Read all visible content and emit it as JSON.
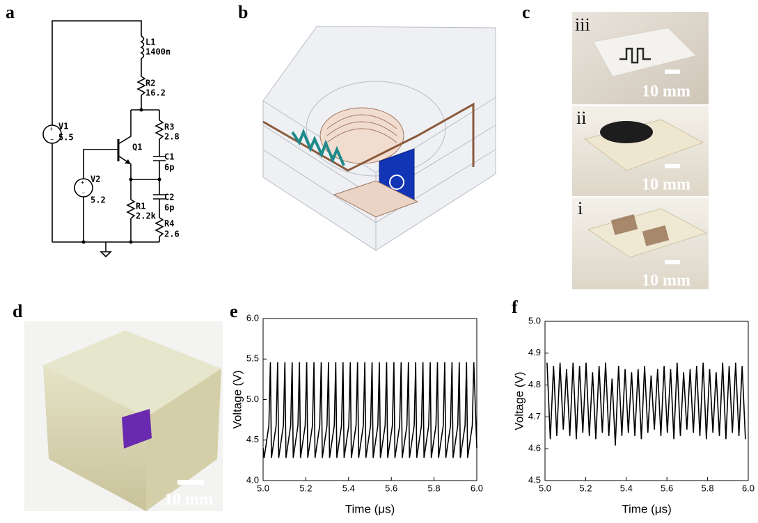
{
  "panels": {
    "a": {
      "label": "a",
      "components": [
        {
          "name": "V1",
          "value": "5.5"
        },
        {
          "name": "L1",
          "value": "1400n"
        },
        {
          "name": "R2",
          "value": "16.2"
        },
        {
          "name": "R3",
          "value": "2.8"
        },
        {
          "name": "C1",
          "value": "6p"
        },
        {
          "name": "C2",
          "value": "6p"
        },
        {
          "name": "R4",
          "value": "2.6"
        },
        {
          "name": "R1",
          "value": "2.2k"
        },
        {
          "name": "V2",
          "value": "5.2"
        },
        {
          "name": "Q1"
        }
      ]
    },
    "b": {
      "label": "b"
    },
    "c": {
      "label": "c",
      "photos": [
        {
          "label": "iii",
          "scale": "10 mm"
        },
        {
          "label": "ii",
          "scale": "10 mm"
        },
        {
          "label": "i",
          "scale": "10 mm"
        }
      ]
    },
    "d": {
      "label": "d",
      "scale": "10 mm"
    }
  },
  "chart_data": [
    {
      "type": "line",
      "panel_label": "e",
      "x_label": "Time (μs)",
      "y_label": "Voltage (V)",
      "xlim": [
        5.0,
        6.0
      ],
      "ylim": [
        4.0,
        6.0
      ],
      "xticks": [
        {
          "value": 5.0,
          "label": "5.0"
        },
        5.2,
        5.4,
        5.6,
        5.8,
        {
          "value": 6.0,
          "label": "6.0"
        }
      ],
      "yticks": [
        {
          "value": 4.0,
          "label": "4.0"
        },
        4.5,
        {
          "value": 5.0,
          "label": "5.0"
        },
        5.5,
        {
          "value": 6.0,
          "label": "6.0"
        }
      ],
      "x": [
        5.0,
        5.005,
        5.027,
        5.034,
        5.039,
        5.061,
        5.068,
        5.073,
        5.095,
        5.102,
        5.107,
        5.129,
        5.136,
        5.141,
        5.163,
        5.17,
        5.175,
        5.197,
        5.204,
        5.209,
        5.231,
        5.238,
        5.243,
        5.265,
        5.272,
        5.277,
        5.299,
        5.306,
        5.311,
        5.333,
        5.34,
        5.345,
        5.367,
        5.374,
        5.379,
        5.401,
        5.408,
        5.413,
        5.435,
        5.442,
        5.447,
        5.469,
        5.476,
        5.481,
        5.503,
        5.51,
        5.515,
        5.537,
        5.544,
        5.549,
        5.571,
        5.578,
        5.583,
        5.605,
        5.612,
        5.617,
        5.639,
        5.646,
        5.651,
        5.673,
        5.68,
        5.685,
        5.707,
        5.714,
        5.719,
        5.741,
        5.748,
        5.753,
        5.775,
        5.782,
        5.787,
        5.809,
        5.816,
        5.821,
        5.843,
        5.85,
        5.855,
        5.877,
        5.884,
        5.889,
        5.911,
        5.918,
        5.923,
        5.945,
        5.952,
        5.957,
        5.979,
        5.986,
        6.0
      ],
      "series": [
        {
          "color": "#000000",
          "values": [
            4.4,
            4.28,
            4.68,
            5.46,
            4.28,
            4.68,
            5.46,
            4.28,
            4.68,
            5.46,
            4.28,
            4.68,
            5.46,
            4.28,
            4.68,
            5.46,
            4.28,
            4.68,
            5.46,
            4.28,
            4.68,
            5.46,
            4.28,
            4.68,
            5.46,
            4.28,
            4.68,
            5.46,
            4.28,
            4.68,
            5.46,
            4.28,
            4.68,
            5.46,
            4.28,
            4.68,
            5.46,
            4.28,
            4.68,
            5.46,
            4.28,
            4.68,
            5.46,
            4.28,
            4.68,
            5.46,
            4.28,
            4.68,
            5.46,
            4.28,
            4.68,
            5.46,
            4.28,
            4.68,
            5.46,
            4.28,
            4.68,
            5.46,
            4.28,
            4.68,
            5.46,
            4.28,
            4.68,
            5.46,
            4.28,
            4.68,
            5.46,
            4.28,
            4.68,
            5.46,
            4.28,
            4.68,
            5.46,
            4.28,
            4.68,
            5.46,
            4.28,
            4.68,
            5.46,
            4.28,
            4.68,
            5.46,
            4.28,
            4.68,
            5.46,
            4.28,
            4.68,
            5.46,
            4.4
          ]
        }
      ]
    },
    {
      "type": "line",
      "panel_label": "f",
      "x_label": "Time (μs)",
      "y_label": "Voltage (V)",
      "xlim": [
        5.0,
        6.0
      ],
      "ylim": [
        4.5,
        5.0
      ],
      "xticks": [
        {
          "value": 5.0,
          "label": "5.0"
        },
        5.2,
        5.4,
        5.6,
        5.8,
        {
          "value": 6.0,
          "label": "6.0"
        }
      ],
      "yticks": [
        4.5,
        4.6,
        4.7,
        4.8,
        4.9,
        {
          "value": 5.0,
          "label": "5.0"
        }
      ],
      "x": [
        5.01,
        5.026,
        5.042,
        5.058,
        5.074,
        5.09,
        5.106,
        5.122,
        5.138,
        5.154,
        5.17,
        5.186,
        5.202,
        5.218,
        5.234,
        5.25,
        5.266,
        5.282,
        5.298,
        5.314,
        5.33,
        5.346,
        5.362,
        5.378,
        5.394,
        5.41,
        5.426,
        5.442,
        5.458,
        5.474,
        5.49,
        5.506,
        5.522,
        5.538,
        5.554,
        5.57,
        5.586,
        5.602,
        5.618,
        5.634,
        5.65,
        5.666,
        5.682,
        5.698,
        5.714,
        5.73,
        5.746,
        5.762,
        5.778,
        5.794,
        5.81,
        5.826,
        5.842,
        5.858,
        5.874,
        5.89,
        5.906,
        5.922,
        5.938,
        5.954,
        5.97,
        5.986
      ],
      "series": [
        {
          "color": "#000000",
          "values": [
            4.87,
            4.63,
            4.86,
            4.64,
            4.87,
            4.66,
            4.85,
            4.64,
            4.87,
            4.63,
            4.86,
            4.65,
            4.87,
            4.64,
            4.84,
            4.63,
            4.86,
            4.65,
            4.87,
            4.64,
            4.82,
            4.61,
            4.86,
            4.64,
            4.85,
            4.65,
            4.84,
            4.64,
            4.85,
            4.63,
            4.86,
            4.65,
            4.83,
            4.66,
            4.85,
            4.64,
            4.86,
            4.65,
            4.85,
            4.63,
            4.87,
            4.64,
            4.84,
            4.66,
            4.85,
            4.65,
            4.86,
            4.64,
            4.87,
            4.63,
            4.85,
            4.65,
            4.84,
            4.64,
            4.87,
            4.63,
            4.86,
            4.65,
            4.87,
            4.64,
            4.86,
            4.63
          ]
        }
      ]
    }
  ]
}
